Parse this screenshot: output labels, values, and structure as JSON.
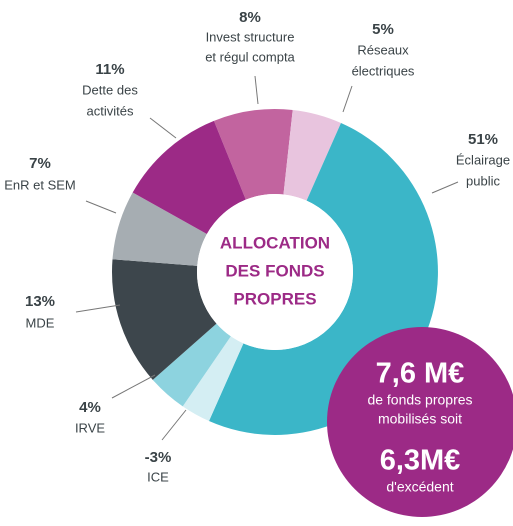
{
  "chart_data": {
    "type": "donut",
    "title": [
      "ALLOCATION",
      "DES FONDS",
      "PROPRES"
    ],
    "categories": [
      [
        "Invest structure",
        "et régul compta"
      ],
      [
        "Réseaux",
        "électriques"
      ],
      [
        "Éclairage",
        "public"
      ],
      [
        "ICE"
      ],
      [
        "IRVE"
      ],
      [
        "MDE"
      ],
      [
        "EnR et SEM"
      ],
      [
        "Dette des",
        "activités"
      ]
    ],
    "values": [
      8,
      5,
      51,
      -3,
      4,
      13,
      7,
      11
    ],
    "value_labels": [
      "8%",
      "5%",
      "51%",
      "-3%",
      "4%",
      "13%",
      "7%",
      "11%"
    ],
    "colors": [
      "#c2649f",
      "#e8c4de",
      "#3bb6c8",
      "#d4eef3",
      "#8dd3df",
      "#3d464c",
      "#a6adb2",
      "#9c2a86"
    ],
    "callout": [
      "7,6 M€",
      "de fonds propres",
      "mobilisés soit",
      "6,3M€",
      "d'excédent"
    ]
  }
}
